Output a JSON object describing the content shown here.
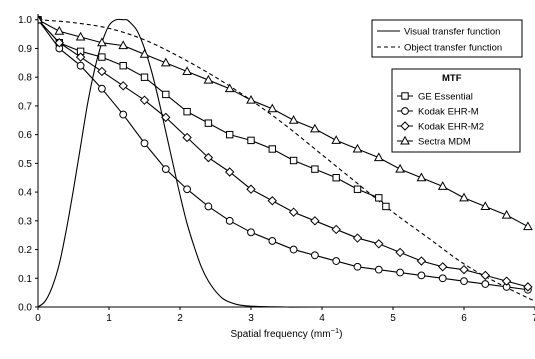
{
  "chart_data": {
    "type": "line",
    "title": "",
    "xlabel": "Spatial frequency (mm",
    "xlabel_sup": "−1",
    "xlabel_suffix": ")",
    "ylabel": "",
    "xlim": [
      0,
      7
    ],
    "ylim": [
      0,
      1.02
    ],
    "x_ticks": [
      0,
      1,
      2,
      3,
      4,
      5,
      6,
      7
    ],
    "y_ticks": [
      0.0,
      0.1,
      0.2,
      0.3,
      0.4,
      0.5,
      0.6,
      0.7,
      0.8,
      0.9,
      1.0
    ],
    "grid": false,
    "reference_curves": [
      {
        "name": "Visual transfer function",
        "style": "solid",
        "color": "#000000",
        "x": [
          0,
          0.1,
          0.2,
          0.3,
          0.4,
          0.5,
          0.6,
          0.7,
          0.8,
          0.9,
          1.0,
          1.1,
          1.2,
          1.25,
          1.3,
          1.4,
          1.5,
          1.6,
          1.7,
          1.8,
          1.9,
          2.0,
          2.1,
          2.2,
          2.3,
          2.4,
          2.5,
          2.6,
          2.7,
          2.8,
          2.9,
          3.0,
          3.2,
          3.5,
          4.0,
          5.0,
          6.0,
          7.0
        ],
        "y": [
          0.0,
          0.02,
          0.07,
          0.15,
          0.27,
          0.41,
          0.56,
          0.71,
          0.83,
          0.92,
          0.98,
          1.0,
          1.0,
          1.0,
          0.99,
          0.96,
          0.9,
          0.82,
          0.72,
          0.61,
          0.5,
          0.39,
          0.29,
          0.21,
          0.14,
          0.09,
          0.055,
          0.03,
          0.017,
          0.009,
          0.005,
          0.003,
          0.001,
          0.0,
          0.0,
          0.0,
          0.0,
          0.0
        ]
      },
      {
        "name": "Object transfer function",
        "style": "dashed",
        "color": "#000000",
        "x": [
          0,
          0.5,
          1.0,
          1.5,
          2.0,
          2.5,
          3.0,
          3.5,
          4.0,
          4.5,
          5.0,
          5.5,
          6.0,
          6.5,
          7.0
        ],
        "y": [
          1.0,
          0.99,
          0.97,
          0.93,
          0.87,
          0.8,
          0.72,
          0.63,
          0.53,
          0.43,
          0.33,
          0.24,
          0.15,
          0.08,
          0.02
        ]
      }
    ],
    "legend_reference": {
      "placement": "top-right",
      "entries": [
        "Visual transfer function",
        "Object transfer function"
      ]
    },
    "legend_mtf": {
      "title": "MTF",
      "placement": "upper-right",
      "entries": [
        "GE Essential",
        "Kodak EHR-M",
        "Kodak EHR-M2",
        "Sectra MDM"
      ]
    },
    "series": [
      {
        "name": "GE Essential",
        "marker": "square",
        "x": [
          0,
          0.3,
          0.6,
          0.9,
          1.2,
          1.5,
          1.8,
          2.1,
          2.4,
          2.7,
          3.0,
          3.3,
          3.6,
          3.9,
          4.2,
          4.5,
          4.8,
          4.9
        ],
        "y": [
          1.0,
          0.92,
          0.89,
          0.87,
          0.84,
          0.8,
          0.74,
          0.68,
          0.64,
          0.6,
          0.58,
          0.55,
          0.51,
          0.48,
          0.45,
          0.41,
          0.38,
          0.35
        ]
      },
      {
        "name": "Kodak EHR-M",
        "marker": "circle",
        "x": [
          0,
          0.3,
          0.6,
          0.9,
          1.2,
          1.5,
          1.8,
          2.1,
          2.4,
          2.7,
          3.0,
          3.3,
          3.6,
          3.9,
          4.2,
          4.5,
          4.8,
          5.1,
          5.4,
          5.7,
          6.0,
          6.3,
          6.6,
          6.9
        ],
        "y": [
          1.0,
          0.9,
          0.84,
          0.76,
          0.67,
          0.57,
          0.48,
          0.41,
          0.35,
          0.3,
          0.26,
          0.23,
          0.2,
          0.18,
          0.16,
          0.14,
          0.13,
          0.12,
          0.11,
          0.1,
          0.09,
          0.08,
          0.07,
          0.06
        ]
      },
      {
        "name": "Kodak EHR-M2",
        "marker": "diamond",
        "x": [
          0,
          0.3,
          0.6,
          0.9,
          1.2,
          1.5,
          1.8,
          2.1,
          2.4,
          2.7,
          3.0,
          3.3,
          3.6,
          3.9,
          4.2,
          4.5,
          4.8,
          5.1,
          5.4,
          5.7,
          6.0,
          6.3,
          6.6,
          6.9
        ],
        "y": [
          1.0,
          0.92,
          0.87,
          0.82,
          0.77,
          0.72,
          0.66,
          0.59,
          0.52,
          0.47,
          0.41,
          0.37,
          0.33,
          0.3,
          0.27,
          0.24,
          0.22,
          0.19,
          0.16,
          0.14,
          0.13,
          0.11,
          0.09,
          0.07
        ]
      },
      {
        "name": "Sectra MDM",
        "marker": "triangle",
        "x": [
          0,
          0.3,
          0.6,
          0.9,
          1.2,
          1.5,
          1.8,
          2.1,
          2.4,
          2.7,
          3.0,
          3.3,
          3.6,
          3.9,
          4.2,
          4.5,
          4.8,
          5.1,
          5.4,
          5.7,
          6.0,
          6.3,
          6.6,
          6.9
        ],
        "y": [
          1.0,
          0.96,
          0.94,
          0.92,
          0.91,
          0.88,
          0.85,
          0.82,
          0.79,
          0.76,
          0.72,
          0.69,
          0.65,
          0.62,
          0.58,
          0.55,
          0.52,
          0.48,
          0.45,
          0.42,
          0.38,
          0.35,
          0.32,
          0.28
        ]
      }
    ]
  }
}
